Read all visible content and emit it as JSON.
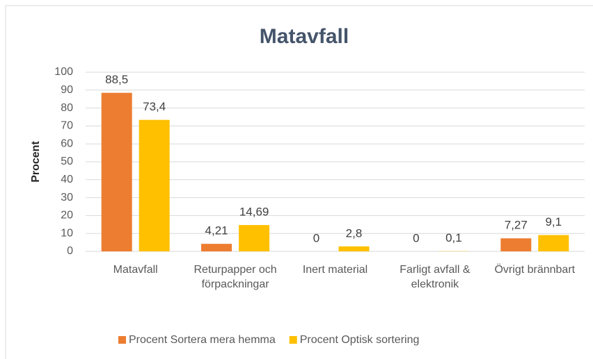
{
  "chart_data": {
    "type": "bar",
    "title": "Matavfall",
    "y_label": "Procent",
    "categories": [
      "Matavfall",
      "Returpapper och förpackningar",
      "Inert material",
      "Farligt avfall & elektronik",
      "Övrigt brännbart"
    ],
    "series": [
      {
        "name": "Procent Sortera mera hemma",
        "color": "#ed7d31",
        "values": [
          88.5,
          4.21,
          0,
          0,
          7.27
        ],
        "value_labels": [
          "88,5",
          "4,21",
          "0",
          "0",
          "7,27"
        ]
      },
      {
        "name": "Procent Optisk sortering",
        "color": "#ffc000",
        "values": [
          73.4,
          14.69,
          2.8,
          0.1,
          9.1
        ],
        "value_labels": [
          "73,4",
          "14,69",
          "2,8",
          "0,1",
          "9,1"
        ]
      }
    ],
    "ylim": [
      0,
      100
    ],
    "yticks": [
      0,
      10,
      20,
      30,
      40,
      50,
      60,
      70,
      80,
      90,
      100
    ],
    "grid": true,
    "legend": "bottom"
  }
}
